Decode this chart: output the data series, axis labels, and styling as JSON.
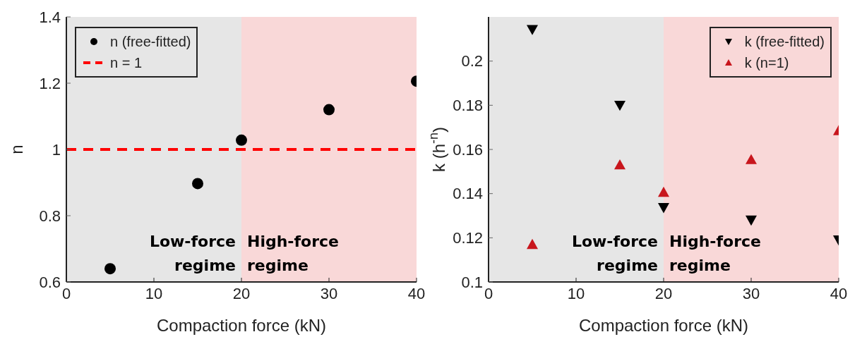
{
  "chart_data": [
    {
      "type": "scatter",
      "xlabel": "Compaction force (kN)",
      "ylabel": "n",
      "x": [
        5,
        15,
        20,
        30,
        40
      ],
      "series": [
        {
          "name": "n (free-fitted)",
          "color": "#000000",
          "marker": "circle",
          "values": [
            0.64,
            0.897,
            1.028,
            1.12,
            1.206
          ]
        }
      ],
      "xlim": [
        0,
        40
      ],
      "xticks": [
        0,
        10,
        20,
        30,
        40
      ],
      "ylim": [
        0.6,
        1.4
      ],
      "yticks": [
        0.6,
        0.8,
        1,
        1.2,
        1.4
      ],
      "legend": "top left",
      "bands": [
        {
          "axis": "x",
          "from": 0,
          "to": 20,
          "color": "#c8c8c8"
        },
        {
          "axis": "x",
          "from": 20,
          "to": 40,
          "color": "#f2a8a8"
        }
      ],
      "ref_lines": [
        {
          "axis": "y",
          "value": 1,
          "label": "n = 1",
          "color": "#ff0000",
          "line_style": "dashed"
        }
      ],
      "annotations": [
        "Low-force regime",
        "High-force regime"
      ]
    },
    {
      "type": "scatter",
      "xlabel": "Compaction force (kN)",
      "ylabel": "k (h$^{-n}$)",
      "x": [
        5,
        15,
        20,
        30,
        40
      ],
      "series": [
        {
          "name": "k (free-fitted)",
          "color": "#000000",
          "marker": "triangle-down",
          "values": [
            0.2143,
            0.18,
            0.1337,
            0.128,
            0.119
          ]
        },
        {
          "name": "k (n=1)",
          "color": "#c8161d",
          "marker": "triangle",
          "values": [
            0.117,
            0.153,
            0.1406,
            0.1554,
            0.1685
          ]
        }
      ],
      "xlim": [
        0,
        40
      ],
      "xticks": [
        0,
        10,
        20,
        30,
        40
      ],
      "ylim": [
        0.1,
        0.22
      ],
      "yticks": [
        0.1,
        0.12,
        0.14,
        0.16,
        0.18,
        0.2
      ],
      "legend": "top right",
      "bands": [
        {
          "axis": "x",
          "from": 0,
          "to": 20,
          "color": "#c8c8c8"
        },
        {
          "axis": "x",
          "from": 20,
          "to": 40,
          "color": "#f2a8a8"
        }
      ],
      "annotations": [
        "Low-force regime",
        "High-force regime"
      ]
    }
  ]
}
